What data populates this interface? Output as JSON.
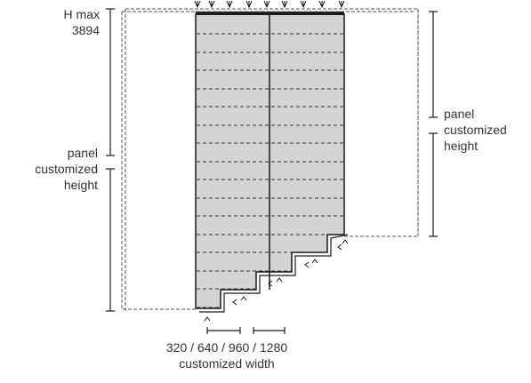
{
  "labels": {
    "hmax_label": "H  max",
    "hmax_value": "3894",
    "left_height": [
      "panel",
      "customized",
      "height"
    ],
    "right_height": [
      "panel",
      "customized",
      "height"
    ],
    "widths": "320 / 640 / 960 / 1280",
    "width_caption": "customized width"
  },
  "colors": {
    "panel_fill": "#d4d4d4",
    "line": "#1a1a1a",
    "dashed": "#555555"
  }
}
